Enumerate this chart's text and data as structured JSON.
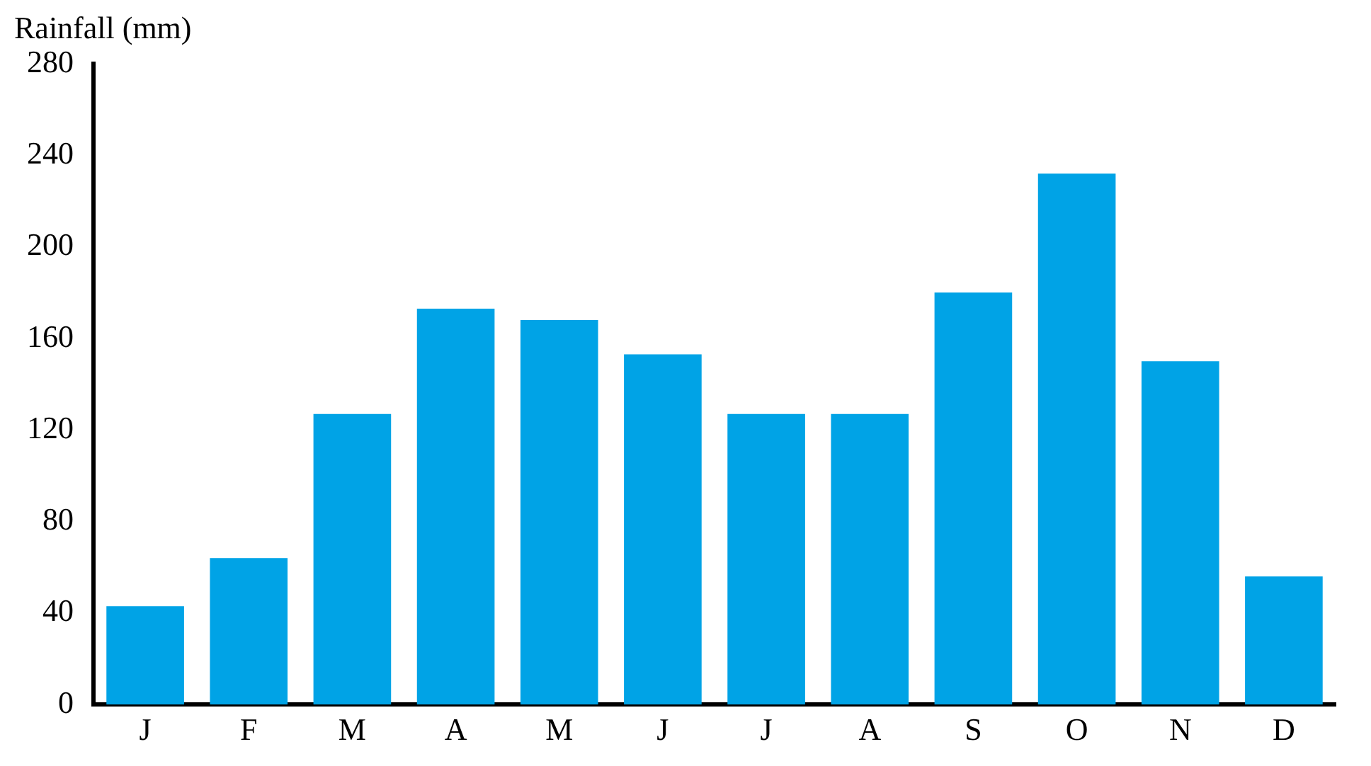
{
  "chart_data": {
    "type": "bar",
    "ylabel": "Rainfall (mm)",
    "categories": [
      "J",
      "F",
      "M",
      "A",
      "M",
      "J",
      "J",
      "A",
      "S",
      "O",
      "N",
      "D"
    ],
    "values": [
      43,
      64,
      127,
      173,
      168,
      153,
      127,
      127,
      180,
      232,
      150,
      56
    ],
    "color": "#00a3e6",
    "ylim": [
      0,
      280
    ],
    "yticks": [
      0,
      40,
      80,
      120,
      160,
      200,
      240,
      280
    ],
    "grid": false
  }
}
